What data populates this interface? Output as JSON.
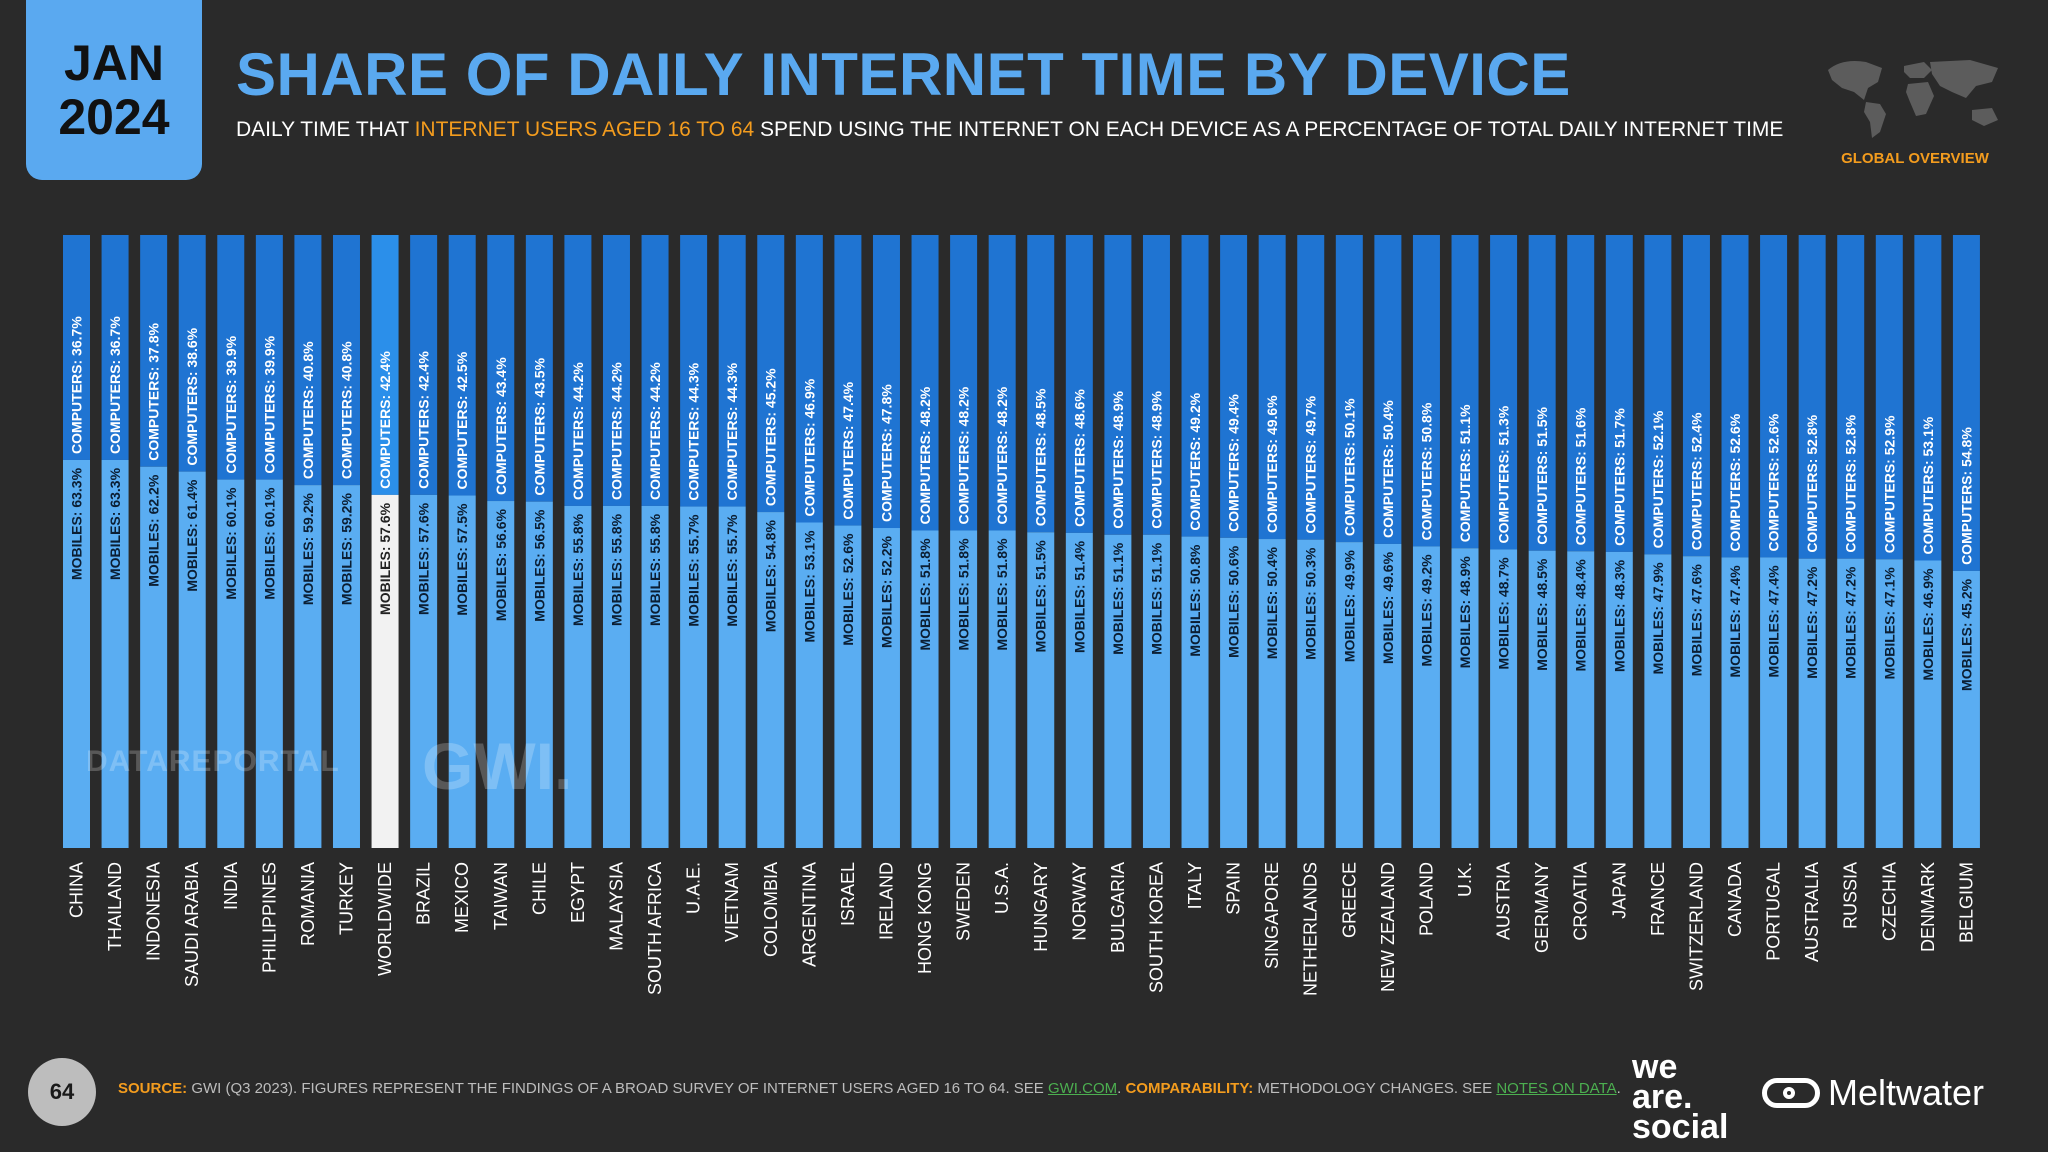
{
  "header": {
    "month": "JAN",
    "year": "2024",
    "title": "SHARE OF DAILY INTERNET TIME BY DEVICE",
    "subtitle_pre": "DAILY TIME THAT ",
    "subtitle_highlight": "INTERNET USERS AGED 16 TO 64",
    "subtitle_post": " SPEND USING THE INTERNET ON EACH DEVICE AS A PERCENTAGE OF TOTAL DAILY INTERNET TIME",
    "overview_label": "GLOBAL OVERVIEW"
  },
  "colors": {
    "background": "#2a2a2a",
    "accent_blue": "#5aa9f0",
    "computers": "#1f74d2",
    "mobiles": "#5aadf2",
    "worldwide_mobiles": "#f2f2f2",
    "worldwide_computers": "#2b8fea",
    "orange": "#f39c1e"
  },
  "watermarks": {
    "datareportal": "DATAREPORTAL",
    "gwi": "GWI."
  },
  "chart_data": {
    "type": "bar",
    "stacked": true,
    "series_label_prefix": {
      "computers": "COMPUTERS: ",
      "mobiles": "MOBILES: "
    },
    "categories": [
      "CHINA",
      "THAILAND",
      "INDONESIA",
      "SAUDI ARABIA",
      "INDIA",
      "PHILIPPINES",
      "ROMANIA",
      "TURKEY",
      "WORLDWIDE",
      "BRAZIL",
      "MEXICO",
      "TAIWAN",
      "CHILE",
      "EGYPT",
      "MALAYSIA",
      "SOUTH AFRICA",
      "U.A.E.",
      "VIETNAM",
      "COLOMBIA",
      "ARGENTINA",
      "ISRAEL",
      "IRELAND",
      "HONG KONG",
      "SWEDEN",
      "U.S.A.",
      "HUNGARY",
      "NORWAY",
      "BULGARIA",
      "SOUTH KOREA",
      "ITALY",
      "SPAIN",
      "SINGAPORE",
      "NETHERLANDS",
      "GREECE",
      "NEW ZEALAND",
      "POLAND",
      "U.K.",
      "AUSTRIA",
      "GERMANY",
      "CROATIA",
      "JAPAN",
      "FRANCE",
      "SWITZERLAND",
      "CANADA",
      "PORTUGAL",
      "AUSTRALIA",
      "RUSSIA",
      "CZECHIA",
      "DENMARK",
      "BELGIUM"
    ],
    "series": [
      {
        "name": "COMPUTERS",
        "values": [
          36.7,
          36.7,
          37.8,
          38.6,
          39.9,
          39.9,
          40.8,
          40.8,
          42.4,
          42.4,
          42.5,
          43.4,
          43.5,
          44.2,
          44.2,
          44.2,
          44.3,
          44.3,
          45.2,
          46.9,
          47.4,
          47.8,
          48.2,
          48.2,
          48.2,
          48.5,
          48.6,
          48.9,
          48.9,
          49.2,
          49.4,
          49.6,
          49.7,
          50.1,
          50.4,
          50.8,
          51.1,
          51.3,
          51.5,
          51.6,
          51.7,
          52.1,
          52.4,
          52.6,
          52.6,
          52.8,
          52.8,
          52.9,
          53.1,
          54.8
        ]
      },
      {
        "name": "MOBILES",
        "values": [
          63.3,
          63.3,
          62.2,
          61.4,
          60.1,
          60.1,
          59.2,
          59.2,
          57.6,
          57.6,
          57.5,
          56.6,
          56.5,
          55.8,
          55.8,
          55.8,
          55.7,
          55.7,
          54.8,
          53.1,
          52.6,
          52.2,
          51.8,
          51.8,
          51.8,
          51.5,
          51.4,
          51.1,
          51.1,
          50.8,
          50.6,
          50.4,
          50.3,
          49.9,
          49.6,
          49.2,
          48.9,
          48.7,
          48.5,
          48.4,
          48.3,
          47.9,
          47.6,
          47.4,
          47.4,
          47.2,
          47.2,
          47.1,
          46.9,
          45.2
        ]
      }
    ],
    "highlight_category": "WORLDWIDE",
    "ylim": [
      0,
      100
    ]
  },
  "footer": {
    "page_number": "64",
    "source_label": "SOURCE:",
    "source_text": " GWI (Q3 2023). FIGURES REPRESENT THE FINDINGS OF A BROAD SURVEY OF INTERNET USERS AGED 16 TO 64. SEE ",
    "source_link": "GWI.COM",
    "source_end": ". ",
    "comparability_label": "COMPARABILITY:",
    "comparability_text": " METHODOLOGY CHANGES. SEE ",
    "comparability_link": "NOTES ON DATA",
    "comparability_end": ".",
    "logo_line1": "we",
    "logo_line2": "are.",
    "logo_line3": "social",
    "meltwater": "Meltwater"
  }
}
